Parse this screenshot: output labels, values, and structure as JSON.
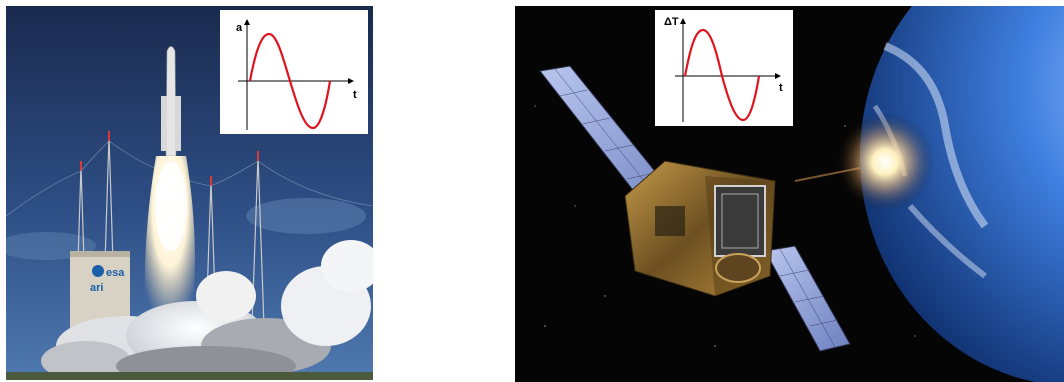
{
  "left_scene": {
    "subject": "rocket-launch",
    "pad_sign_logo": "esa",
    "pad_sign_text": "ari",
    "inset": {
      "y_axis_label": "a",
      "x_axis_label": "t",
      "curve": "sine",
      "curve_color": "#e0141e"
    }
  },
  "right_scene": {
    "subject": "satellite-orbiting-earth",
    "inset": {
      "y_axis_label": "ΔT",
      "x_axis_label": "t",
      "curve": "sine",
      "curve_color": "#e0141e"
    }
  },
  "colors": {
    "sky_top": "#1a2c52",
    "sky_mid": "#3a5a8e",
    "space": "#050505",
    "earth": "#2f6fd0",
    "solar_panel": "#8fa4d8",
    "satellite_body": "#8a6a2c"
  }
}
